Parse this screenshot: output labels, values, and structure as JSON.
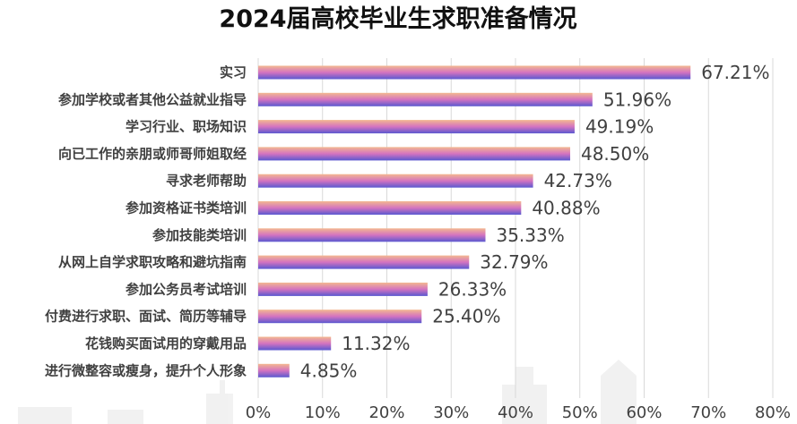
{
  "chart_data": {
    "type": "bar",
    "orientation": "horizontal",
    "title": "2024届高校毕业生求职准备情况",
    "categories": [
      "实习",
      "参加学校或者其他公益就业指导",
      "学习行业、职场知识",
      "向已工作的亲朋或师哥师姐取经",
      "寻求老师帮助",
      "参加资格证书类培训",
      "参加技能类培训",
      "从网上自学求职攻略和避坑指南",
      "参加公务员考试培训",
      "付费进行求职、面试、简历等辅导",
      "花钱购买面试用的穿戴用品",
      "进行微整容或瘦身，提升个人形象"
    ],
    "values": [
      67.21,
      51.96,
      49.19,
      48.5,
      42.73,
      40.88,
      35.33,
      32.79,
      26.33,
      25.4,
      11.32,
      4.85
    ],
    "value_labels": [
      "67.21%",
      "51.96%",
      "49.19%",
      "48.50%",
      "42.73%",
      "40.88%",
      "35.33%",
      "32.79%",
      "26.33%",
      "25.40%",
      "11.32%",
      "4.85%"
    ],
    "xlim": [
      0,
      80
    ],
    "xticks": [
      0,
      10,
      20,
      30,
      40,
      50,
      60,
      70,
      80
    ],
    "xtick_labels": [
      "0%",
      "10%",
      "20%",
      "30%",
      "40%",
      "50%",
      "60%",
      "70%",
      "80%"
    ],
    "xlabel": "",
    "ylabel": "",
    "grid": true,
    "legend": "none",
    "colors": {
      "bar_gradient_top": "#f3b890",
      "bar_gradient_mid": "#d473c0",
      "bar_gradient_bottom": "#5a58d0",
      "grid": "#d9d9d9",
      "text": "#404040",
      "title": "#111111"
    }
  }
}
